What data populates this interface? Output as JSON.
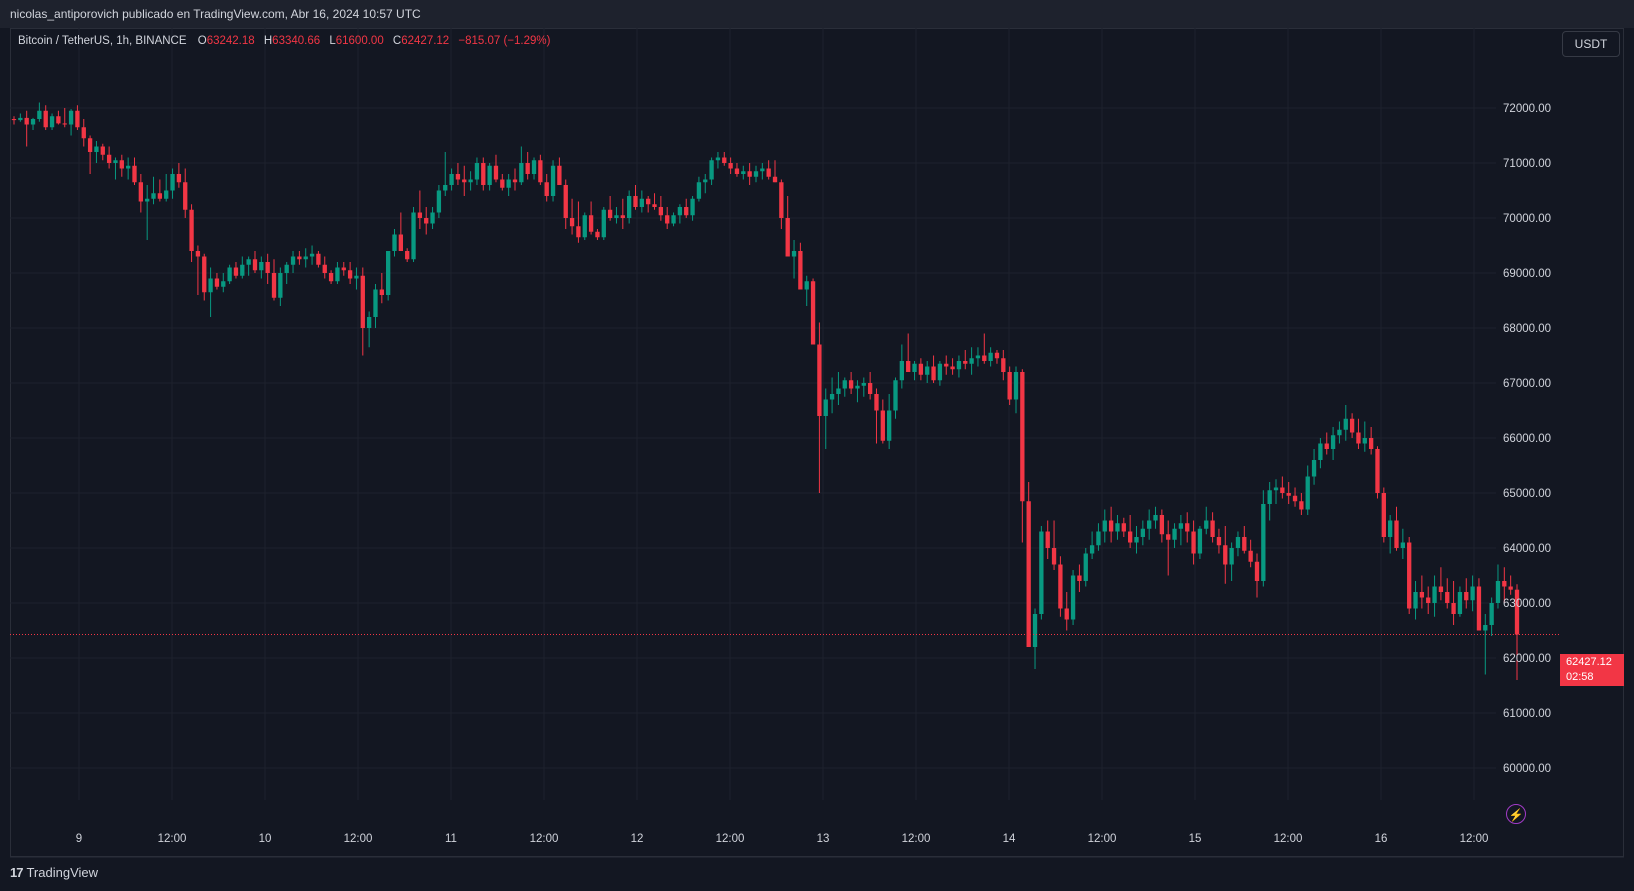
{
  "header": {
    "publisher_line": "nicolas_antiporovich publicado en TradingView.com, Abr 16, 2024 10:57 UTC"
  },
  "legend": {
    "symbol": "Bitcoin / TetherUS, 1h, BINANCE",
    "open_label": "O",
    "open": "63242.18",
    "high_label": "H",
    "high": "63340.66",
    "low_label": "L",
    "low": "61600.00",
    "close_label": "C",
    "close": "62427.12",
    "change": "−815.07 (−1.29%)"
  },
  "currency_button": "USDT",
  "last_price": {
    "price": "62427.12",
    "countdown": "02:58"
  },
  "brand": {
    "name": "TradingView",
    "logo": "17"
  },
  "colors": {
    "up": "#089981",
    "down": "#f23645",
    "background": "#131722",
    "grid": "#1e222d",
    "text": "#d1d4dc"
  },
  "icons": {
    "alert": "lightning-bolt-icon"
  },
  "chart_data": {
    "type": "candlestick",
    "interval": "1h",
    "y_ticks": [
      72000,
      71000,
      70000,
      69000,
      68000,
      67000,
      66000,
      65000,
      64000,
      63000,
      62000,
      61000,
      60000
    ],
    "y_tick_labels": [
      "72000.00",
      "71000.00",
      "70000.00",
      "69000.00",
      "68000.00",
      "67000.00",
      "66000.00",
      "65000.00",
      "64000.00",
      "63000.00",
      "62000.00",
      "61000.00",
      "60000.00"
    ],
    "x_tick_labels": [
      "9",
      "12:00",
      "10",
      "12:00",
      "11",
      "12:00",
      "12",
      "12:00",
      "13",
      "12:00",
      "14",
      "12:00",
      "15",
      "12:00",
      "16",
      "12:00"
    ],
    "ylim": [
      59700,
      73100
    ],
    "current_price": 62427.12,
    "series": [
      [
        71800,
        71850,
        71700,
        71780
      ],
      [
        71780,
        71900,
        71750,
        71820
      ],
      [
        71820,
        71950,
        71300,
        71700
      ],
      [
        71700,
        71820,
        71600,
        71800
      ],
      [
        71800,
        72100,
        71750,
        71950
      ],
      [
        71950,
        72050,
        71600,
        71650
      ],
      [
        71650,
        71900,
        71600,
        71850
      ],
      [
        71850,
        71950,
        71700,
        71720
      ],
      [
        71720,
        72000,
        71650,
        71700
      ],
      [
        71700,
        71980,
        71500,
        71950
      ],
      [
        71950,
        72050,
        71600,
        71650
      ],
      [
        71650,
        71800,
        71300,
        71450
      ],
      [
        71450,
        71500,
        70800,
        71200
      ],
      [
        71200,
        71400,
        71000,
        71300
      ],
      [
        71300,
        71350,
        71050,
        71150
      ],
      [
        71150,
        71300,
        70900,
        71000
      ],
      [
        71000,
        71100,
        70700,
        71050
      ],
      [
        71050,
        71150,
        70750,
        70900
      ],
      [
        70900,
        71100,
        70700,
        70950
      ],
      [
        70950,
        71100,
        70600,
        70650
      ],
      [
        70650,
        70800,
        70100,
        70300
      ],
      [
        70300,
        70600,
        69600,
        70350
      ],
      [
        70350,
        70750,
        70250,
        70450
      ],
      [
        70450,
        70700,
        70300,
        70350
      ],
      [
        70350,
        70800,
        70300,
        70500
      ],
      [
        70500,
        70900,
        70350,
        70800
      ],
      [
        70800,
        71000,
        70550,
        70650
      ],
      [
        70650,
        70900,
        70000,
        70150
      ],
      [
        70150,
        70250,
        69200,
        69400
      ],
      [
        69400,
        69500,
        68600,
        69300
      ],
      [
        69300,
        69350,
        68500,
        68650
      ],
      [
        68650,
        69100,
        68200,
        68900
      ],
      [
        68900,
        69000,
        68700,
        68750
      ],
      [
        68750,
        69000,
        68650,
        68850
      ],
      [
        68850,
        69150,
        68800,
        69100
      ],
      [
        69100,
        69200,
        68900,
        68950
      ],
      [
        68950,
        69300,
        68900,
        69150
      ],
      [
        69150,
        69300,
        68950,
        69250
      ],
      [
        69250,
        69400,
        69000,
        69050
      ],
      [
        69050,
        69300,
        68900,
        69200
      ],
      [
        69200,
        69350,
        68800,
        69000
      ],
      [
        69000,
        69250,
        68500,
        68550
      ],
      [
        68550,
        69100,
        68400,
        69000
      ],
      [
        69000,
        69200,
        68800,
        69150
      ],
      [
        69150,
        69400,
        69000,
        69300
      ],
      [
        69300,
        69400,
        69150,
        69250
      ],
      [
        69250,
        69450,
        69100,
        69300
      ],
      [
        69300,
        69500,
        69150,
        69350
      ],
      [
        69350,
        69400,
        69100,
        69150
      ],
      [
        69150,
        69300,
        68900,
        69000
      ],
      [
        69000,
        69050,
        68800,
        68850
      ],
      [
        68850,
        69200,
        68800,
        69100
      ],
      [
        69100,
        69200,
        68950,
        69050
      ],
      [
        69050,
        69200,
        68800,
        68900
      ],
      [
        68900,
        69100,
        68700,
        68950
      ],
      [
        68950,
        69100,
        67500,
        68000
      ],
      [
        68000,
        68300,
        67650,
        68200
      ],
      [
        68200,
        68800,
        68000,
        68700
      ],
      [
        68700,
        69000,
        68450,
        68600
      ],
      [
        68600,
        69400,
        68500,
        69400
      ],
      [
        69400,
        69800,
        69300,
        69700
      ],
      [
        69700,
        70100,
        69500,
        69400
      ],
      [
        69400,
        69450,
        69200,
        69250
      ],
      [
        69250,
        70200,
        69200,
        70100
      ],
      [
        70100,
        70500,
        69800,
        70000
      ],
      [
        70000,
        70200,
        69700,
        69900
      ],
      [
        69900,
        70200,
        69800,
        70100
      ],
      [
        70100,
        70600,
        70000,
        70500
      ],
      [
        70500,
        71200,
        70400,
        70600
      ],
      [
        70600,
        70900,
        70500,
        70800
      ],
      [
        70800,
        71000,
        70600,
        70700
      ],
      [
        70700,
        70950,
        70400,
        70650
      ],
      [
        70650,
        70850,
        70500,
        70700
      ],
      [
        70700,
        71100,
        70600,
        71000
      ],
      [
        71000,
        71100,
        70500,
        70600
      ],
      [
        70600,
        71000,
        70500,
        70950
      ],
      [
        70950,
        71150,
        70650,
        70700
      ],
      [
        70700,
        70800,
        70500,
        70550
      ],
      [
        70550,
        70800,
        70400,
        70700
      ],
      [
        70700,
        70900,
        70500,
        70650
      ],
      [
        70650,
        71300,
        70600,
        71000
      ],
      [
        71000,
        71200,
        70700,
        70800
      ],
      [
        70800,
        71100,
        70700,
        71050
      ],
      [
        71050,
        71150,
        70600,
        70650
      ],
      [
        70650,
        70800,
        70300,
        70400
      ],
      [
        70400,
        71050,
        70300,
        70950
      ],
      [
        70950,
        71100,
        70600,
        70600
      ],
      [
        70600,
        70700,
        69800,
        70000
      ],
      [
        70000,
        70350,
        69700,
        69850
      ],
      [
        69850,
        70300,
        69550,
        69650
      ],
      [
        69650,
        70100,
        69600,
        70050
      ],
      [
        70050,
        70300,
        69700,
        69750
      ],
      [
        69750,
        69800,
        69600,
        69650
      ],
      [
        69650,
        70200,
        69600,
        70150
      ],
      [
        70150,
        70400,
        69950,
        70000
      ],
      [
        70000,
        70200,
        69900,
        70050
      ],
      [
        70050,
        70350,
        69800,
        70000
      ],
      [
        70000,
        70500,
        69900,
        70400
      ],
      [
        70400,
        70600,
        70150,
        70200
      ],
      [
        70200,
        70500,
        70100,
        70350
      ],
      [
        70350,
        70400,
        70100,
        70250
      ],
      [
        70250,
        70450,
        70150,
        70200
      ],
      [
        70200,
        70400,
        69950,
        70050
      ],
      [
        70050,
        70200,
        69800,
        69900
      ],
      [
        69900,
        70100,
        69850,
        70050
      ],
      [
        70050,
        70250,
        69900,
        70200
      ],
      [
        70200,
        70350,
        70000,
        70050
      ],
      [
        70050,
        70400,
        69950,
        70350
      ],
      [
        70350,
        70750,
        70300,
        70650
      ],
      [
        70650,
        70800,
        70450,
        70700
      ],
      [
        70700,
        71100,
        70600,
        71050
      ],
      [
        71050,
        71200,
        70900,
        71100
      ],
      [
        71100,
        71200,
        70950,
        71000
      ],
      [
        71000,
        71100,
        70800,
        70900
      ],
      [
        70900,
        71000,
        70750,
        70800
      ],
      [
        70800,
        70950,
        70700,
        70850
      ],
      [
        70850,
        71000,
        70600,
        70750
      ],
      [
        70750,
        70950,
        70650,
        70850
      ],
      [
        70850,
        71000,
        70700,
        70900
      ],
      [
        70900,
        71050,
        70700,
        70750
      ],
      [
        70750,
        71050,
        70650,
        70650
      ],
      [
        70650,
        70700,
        69800,
        70000
      ],
      [
        70000,
        70400,
        69300,
        69300
      ],
      [
        69300,
        69600,
        68900,
        69400
      ],
      [
        69400,
        69550,
        68700,
        68700
      ],
      [
        68700,
        68950,
        68400,
        68850
      ],
      [
        68850,
        68900,
        67700,
        67700
      ],
      [
        67700,
        68100,
        65000,
        66400
      ],
      [
        66400,
        66900,
        65800,
        66700
      ],
      [
        66700,
        67100,
        66450,
        66800
      ],
      [
        66800,
        67200,
        66600,
        66900
      ],
      [
        66900,
        67100,
        66750,
        67050
      ],
      [
        67050,
        67200,
        66800,
        66900
      ],
      [
        66900,
        67050,
        66650,
        66950
      ],
      [
        66950,
        67100,
        66750,
        67000
      ],
      [
        67000,
        67200,
        66700,
        66800
      ],
      [
        66800,
        66900,
        65900,
        66500
      ],
      [
        66500,
        66700,
        65900,
        65950
      ],
      [
        65950,
        66800,
        65800,
        66500
      ],
      [
        66500,
        67100,
        66350,
        67050
      ],
      [
        67050,
        67700,
        66900,
        67400
      ],
      [
        67400,
        67900,
        67200,
        67200
      ],
      [
        67200,
        67400,
        67050,
        67350
      ],
      [
        67350,
        67450,
        67050,
        67150
      ],
      [
        67150,
        67400,
        67000,
        67300
      ],
      [
        67300,
        67500,
        67000,
        67050
      ],
      [
        67050,
        67400,
        66950,
        67350
      ],
      [
        67350,
        67500,
        67150,
        67300
      ],
      [
        67300,
        67450,
        67150,
        67250
      ],
      [
        67250,
        67500,
        67100,
        67400
      ],
      [
        67400,
        67600,
        67250,
        67350
      ],
      [
        67350,
        67650,
        67150,
        67450
      ],
      [
        67450,
        67650,
        67300,
        67500
      ],
      [
        67500,
        67900,
        67350,
        67400
      ],
      [
        67400,
        67650,
        67300,
        67550
      ],
      [
        67550,
        67600,
        67350,
        67450
      ],
      [
        67450,
        67600,
        67050,
        67200
      ],
      [
        67200,
        67300,
        66600,
        66700
      ],
      [
        66700,
        67300,
        66450,
        67200
      ],
      [
        67200,
        67250,
        64100,
        64850
      ],
      [
        64850,
        65200,
        62700,
        62200
      ],
      [
        62200,
        62900,
        61800,
        62800
      ],
      [
        62800,
        64400,
        62700,
        64300
      ],
      [
        64300,
        64500,
        63800,
        64000
      ],
      [
        64000,
        64500,
        63600,
        63700
      ],
      [
        63700,
        63850,
        62750,
        62900
      ],
      [
        62900,
        63200,
        62500,
        62700
      ],
      [
        62700,
        63600,
        62600,
        63500
      ],
      [
        63500,
        63700,
        63200,
        63400
      ],
      [
        63400,
        64000,
        63300,
        63900
      ],
      [
        63900,
        64300,
        63800,
        64050
      ],
      [
        64050,
        64450,
        63950,
        64300
      ],
      [
        64300,
        64700,
        64100,
        64500
      ],
      [
        64500,
        64750,
        64100,
        64300
      ],
      [
        64300,
        64600,
        64150,
        64450
      ],
      [
        64450,
        64550,
        64200,
        64300
      ],
      [
        64300,
        64600,
        64000,
        64100
      ],
      [
        64100,
        64400,
        63900,
        64200
      ],
      [
        64200,
        64500,
        64050,
        64350
      ],
      [
        64350,
        64700,
        64150,
        64500
      ],
      [
        64500,
        64750,
        64350,
        64600
      ],
      [
        64600,
        64700,
        64100,
        64250
      ],
      [
        64250,
        64500,
        63500,
        64150
      ],
      [
        64150,
        64450,
        64000,
        64350
      ],
      [
        64350,
        64600,
        64050,
        64450
      ],
      [
        64450,
        64650,
        64100,
        64300
      ],
      [
        64300,
        64500,
        63700,
        63900
      ],
      [
        63900,
        64400,
        63800,
        64350
      ],
      [
        64350,
        64750,
        64250,
        64500
      ],
      [
        64500,
        64650,
        64100,
        64200
      ],
      [
        64200,
        64350,
        63900,
        64050
      ],
      [
        64050,
        64400,
        63350,
        63700
      ],
      [
        63700,
        64100,
        63400,
        64000
      ],
      [
        64000,
        64300,
        63850,
        64200
      ],
      [
        64200,
        64400,
        63900,
        63950
      ],
      [
        63950,
        64150,
        63650,
        63750
      ],
      [
        63750,
        63900,
        63100,
        63400
      ],
      [
        63400,
        65050,
        63300,
        64800
      ],
      [
        64800,
        65200,
        64500,
        65050
      ],
      [
        65050,
        65250,
        64800,
        65100
      ],
      [
        65100,
        65300,
        64900,
        65000
      ],
      [
        65000,
        65200,
        64800,
        64950
      ],
      [
        64950,
        65100,
        64750,
        64850
      ],
      [
        64850,
        65000,
        64600,
        64700
      ],
      [
        64700,
        65500,
        64600,
        65300
      ],
      [
        65300,
        65800,
        65150,
        65600
      ],
      [
        65600,
        66000,
        65450,
        65900
      ],
      [
        65900,
        66100,
        65700,
        65800
      ],
      [
        65800,
        66200,
        65600,
        66050
      ],
      [
        66050,
        66300,
        65900,
        66150
      ],
      [
        66150,
        66600,
        65950,
        66350
      ],
      [
        66350,
        66450,
        66000,
        66100
      ],
      [
        66100,
        66350,
        65800,
        65900
      ],
      [
        65900,
        66300,
        65750,
        66000
      ],
      [
        66000,
        66200,
        65700,
        65800
      ],
      [
        65800,
        65850,
        64900,
        65000
      ],
      [
        65000,
        65100,
        64100,
        64200
      ],
      [
        64200,
        64600,
        63900,
        64500
      ],
      [
        64500,
        64750,
        63950,
        64000
      ],
      [
        64000,
        64350,
        63800,
        64100
      ],
      [
        64100,
        64200,
        62800,
        62900
      ],
      [
        62900,
        63400,
        62700,
        63200
      ],
      [
        63200,
        63500,
        62900,
        63100
      ],
      [
        63100,
        63300,
        62800,
        63000
      ],
      [
        63000,
        63500,
        62750,
        63300
      ],
      [
        63300,
        63650,
        63050,
        63200
      ],
      [
        63200,
        63450,
        62900,
        63000
      ],
      [
        63000,
        63400,
        62600,
        62800
      ],
      [
        62800,
        63300,
        62750,
        63200
      ],
      [
        63200,
        63450,
        62900,
        63050
      ],
      [
        63050,
        63500,
        62850,
        63300
      ],
      [
        63300,
        63450,
        62500,
        62500
      ],
      [
        62500,
        62800,
        61700,
        62600
      ],
      [
        62600,
        63100,
        62400,
        63000
      ],
      [
        63000,
        63700,
        62900,
        63400
      ],
      [
        63400,
        63650,
        63000,
        63300
      ],
      [
        63300,
        63500,
        63150,
        63242.18
      ],
      [
        63242.18,
        63340.66,
        61600,
        62427.12
      ]
    ]
  }
}
